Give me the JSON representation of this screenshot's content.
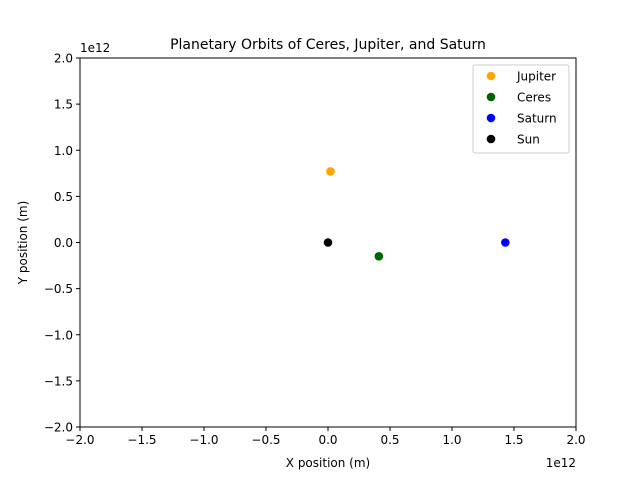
{
  "chart_data": {
    "type": "scatter",
    "title": "Planetary Orbits of Ceres, Jupiter, and Saturn",
    "xlabel": "X position (m)",
    "ylabel": "Y position (m)",
    "x_offset_label": "1e12",
    "y_offset_label": "1e12",
    "xlim": [
      -2.0,
      2.0
    ],
    "ylim": [
      -2.0,
      2.0
    ],
    "x_unit_multiplier": 1000000000000.0,
    "y_unit_multiplier": 1000000000000.0,
    "xticks": [
      -2.0,
      -1.5,
      -1.0,
      -0.5,
      0.0,
      0.5,
      1.0,
      1.5,
      2.0
    ],
    "yticks": [
      -2.0,
      -1.5,
      -1.0,
      -0.5,
      0.0,
      0.5,
      1.0,
      1.5,
      2.0
    ],
    "xtick_labels": [
      "−2.0",
      "−1.5",
      "−1.0",
      "−0.5",
      "0.0",
      "0.5",
      "1.0",
      "1.5",
      "2.0"
    ],
    "ytick_labels": [
      "−2.0",
      "−1.5",
      "−1.0",
      "−0.5",
      "0.0",
      "0.5",
      "1.0",
      "1.5",
      "2.0"
    ],
    "grid": false,
    "legend_position": "top-right",
    "series": [
      {
        "name": "Jupiter",
        "color": "#ffa500",
        "points": [
          {
            "x": 0.02,
            "y": 0.77
          }
        ]
      },
      {
        "name": "Ceres",
        "color": "#006400",
        "points": [
          {
            "x": 0.41,
            "y": -0.15
          }
        ]
      },
      {
        "name": "Saturn",
        "color": "#0000ff",
        "points": [
          {
            "x": 1.43,
            "y": 0.0
          }
        ]
      },
      {
        "name": "Sun",
        "color": "#000000",
        "points": [
          {
            "x": 0.0,
            "y": 0.0
          }
        ]
      }
    ]
  }
}
